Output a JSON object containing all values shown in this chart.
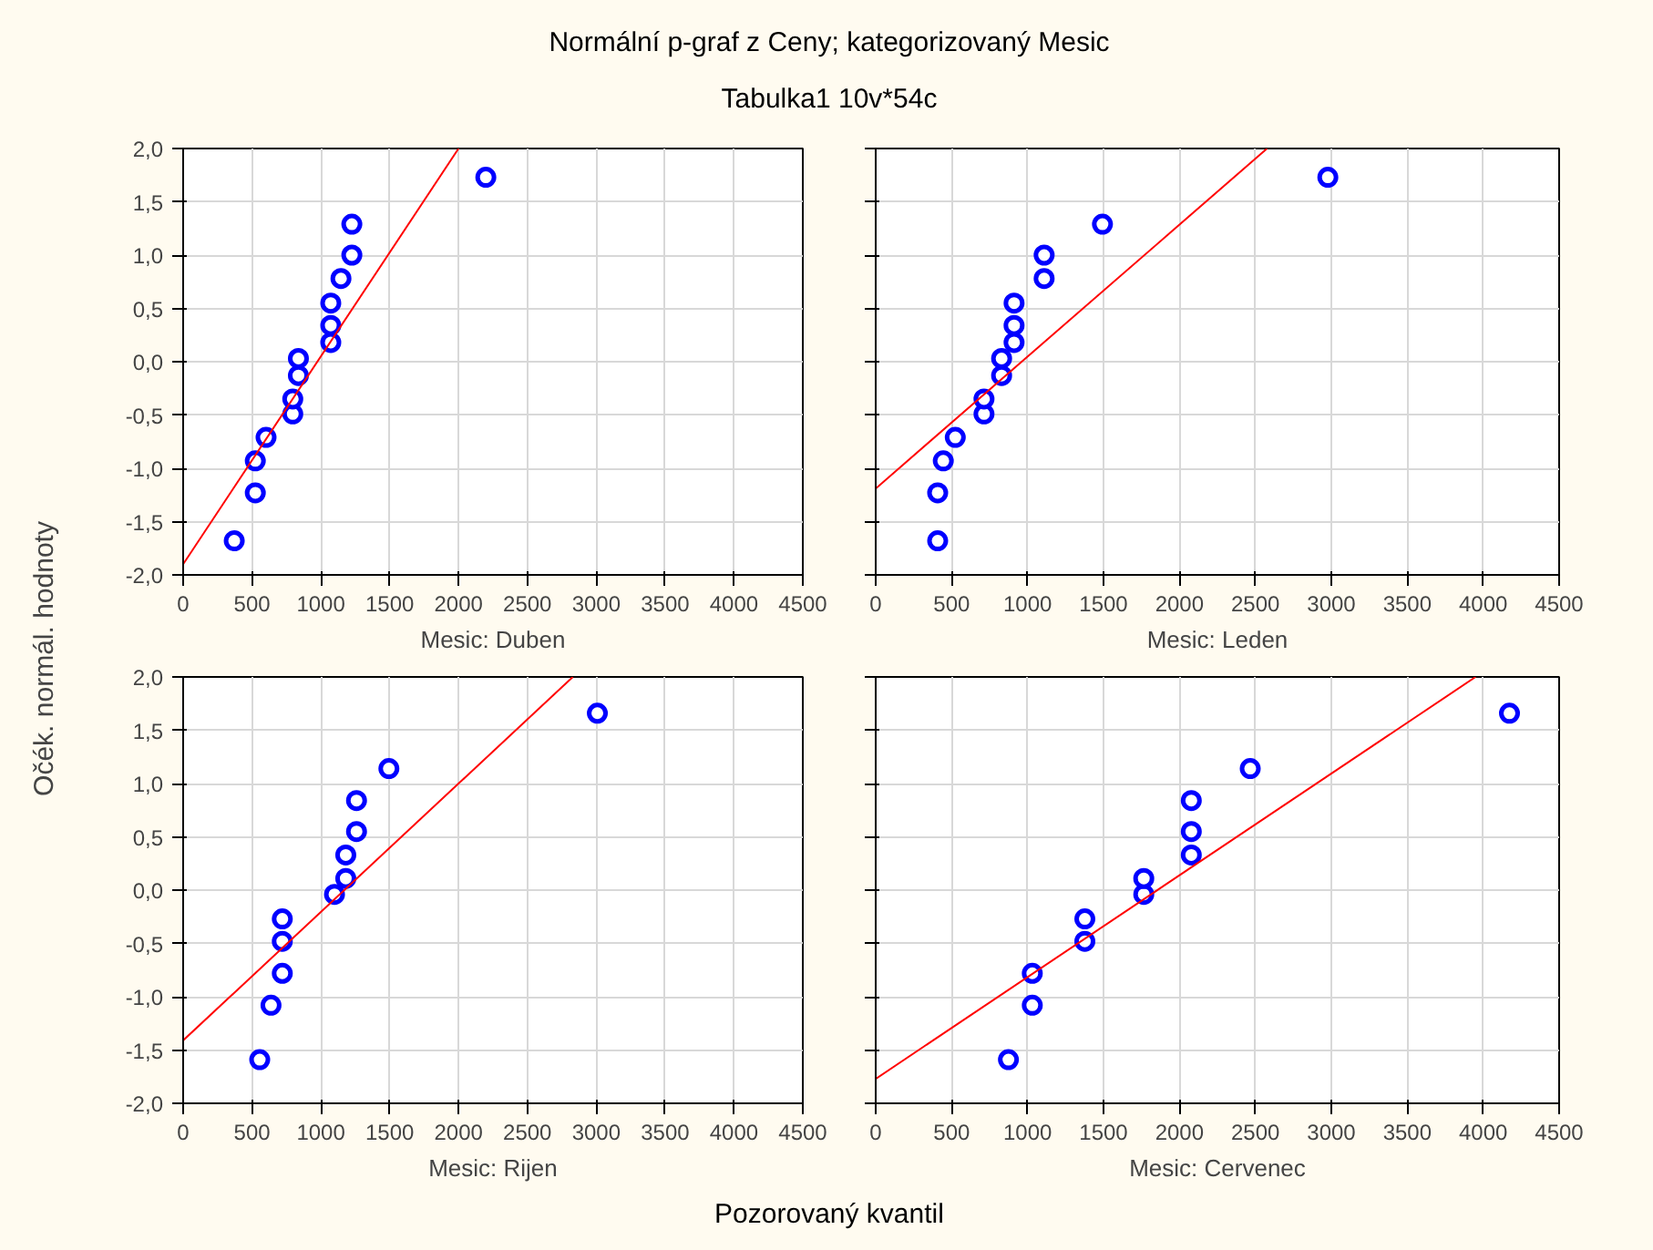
{
  "chart_data": [
    {
      "type": "scatter",
      "title": "Normální p-graf z Ceny; kategorizovaný Mesic",
      "subtitle": "Tabulka1 10v*54c",
      "ylabel": "Očék. normál. hodnoty",
      "annotations": [
        "Pozorovaný kvantil"
      ],
      "xlabel": "Mesic: Duben",
      "series": [
        {
          "x": [
            371,
            524,
            524,
            602,
            796,
            796,
            837,
            837,
            1072,
            1072,
            1072,
            1146,
            1225,
            1225,
            2198
          ],
          "values": [
            -1.68,
            -1.23,
            -0.93,
            -0.71,
            -0.49,
            -0.35,
            -0.13,
            0.03,
            0.18,
            0.34,
            0.55,
            0.78,
            1.0,
            1.29,
            1.73
          ],
          "color": "#0000ff",
          "marker": "circle"
        },
        {
          "type": "line",
          "x": [
            0,
            2000
          ],
          "values": [
            -1.9,
            2.0
          ],
          "color": "#ff0000"
        }
      ],
      "xlim": [
        0,
        4500
      ],
      "ylim": [
        -2,
        2
      ],
      "xticks": [
        0,
        500,
        1000,
        1500,
        2000,
        2500,
        3000,
        3500,
        4000,
        4500
      ],
      "yticks": [
        {
          "value": -2,
          "label": "-2,0"
        },
        {
          "value": -1.5,
          "label": "-1,5"
        },
        {
          "value": -1,
          "label": "-1,0"
        },
        {
          "value": -0.5,
          "label": "-0,5"
        },
        {
          "value": 0,
          "label": "0,0"
        },
        {
          "value": 0.5,
          "label": "0,5"
        },
        {
          "value": 1,
          "label": "1,0"
        },
        {
          "value": 1.5,
          "label": "1,5"
        },
        {
          "value": 2,
          "label": "2,0"
        }
      ],
      "grid": true
    },
    {
      "type": "scatter",
      "xlabel": "Mesic: Leden",
      "series": [
        {
          "x": [
            408,
            408,
            445,
            524,
            713,
            713,
            829,
            829,
            911,
            911,
            911,
            1109,
            1109,
            1493,
            2977
          ],
          "values": [
            -1.68,
            -1.23,
            -0.93,
            -0.71,
            -0.49,
            -0.35,
            -0.13,
            0.03,
            0.18,
            0.34,
            0.55,
            0.78,
            1.0,
            1.29,
            1.73
          ],
          "color": "#0000ff",
          "marker": "circle"
        },
        {
          "type": "line",
          "x": [
            0,
            2577
          ],
          "values": [
            -1.19,
            2.0
          ],
          "color": "#ff0000"
        }
      ],
      "xlim": [
        0,
        4500
      ],
      "ylim": [
        -2,
        2
      ],
      "xticks": [
        0,
        500,
        1000,
        1500,
        2000,
        2500,
        3000,
        3500,
        4000,
        4500
      ],
      "yticks": [
        -2,
        -1.5,
        -1,
        -0.5,
        0,
        0.5,
        1,
        1.5,
        2
      ],
      "grid": true,
      "tick_labels": "x"
    },
    {
      "type": "scatter",
      "xlabel": "Mesic: Rijen",
      "series": [
        {
          "x": [
            556,
            638,
            720,
            720,
            720,
            1099,
            1181,
            1181,
            1259,
            1259,
            1494,
            3008
          ],
          "values": [
            -1.59,
            -1.08,
            -0.78,
            -0.48,
            -0.27,
            -0.04,
            0.11,
            0.33,
            0.55,
            0.84,
            1.14,
            1.66
          ],
          "color": "#0000ff",
          "marker": "circle"
        },
        {
          "type": "line",
          "x": [
            0,
            2830
          ],
          "values": [
            -1.41,
            2.0
          ],
          "color": "#ff0000"
        }
      ],
      "xlim": [
        0,
        4500
      ],
      "ylim": [
        -2,
        2
      ],
      "xticks": [
        0,
        500,
        1000,
        1500,
        2000,
        2500,
        3000,
        3500,
        4000,
        4500
      ],
      "yticks": [
        {
          "value": -2,
          "label": "-2,0"
        },
        {
          "value": -1.5,
          "label": "-1,5"
        },
        {
          "value": -1,
          "label": "-1,0"
        },
        {
          "value": -0.5,
          "label": "-0,5"
        },
        {
          "value": 0,
          "label": "0,0"
        },
        {
          "value": 0.5,
          "label": "0,5"
        },
        {
          "value": 1,
          "label": "1,0"
        },
        {
          "value": 1.5,
          "label": "1,5"
        },
        {
          "value": 2,
          "label": "2,0"
        }
      ],
      "grid": true
    },
    {
      "type": "scatter",
      "xlabel": "Mesic: Cervenec",
      "series": [
        {
          "x": [
            874,
            1031,
            1031,
            1377,
            1377,
            1765,
            1765,
            2078,
            2078,
            2078,
            2466,
            4173
          ],
          "values": [
            -1.59,
            -1.08,
            -0.78,
            -0.48,
            -0.27,
            -0.04,
            0.11,
            0.33,
            0.55,
            0.84,
            1.14,
            1.66
          ],
          "color": "#0000ff",
          "marker": "circle"
        },
        {
          "type": "line",
          "x": [
            0,
            3950
          ],
          "values": [
            -1.77,
            2.0
          ],
          "color": "#ff0000"
        }
      ],
      "xlim": [
        0,
        4500
      ],
      "ylim": [
        -2,
        2
      ],
      "xticks": [
        0,
        500,
        1000,
        1500,
        2000,
        2500,
        3000,
        3500,
        4000,
        4500
      ],
      "yticks": [
        -2,
        -1.5,
        -1,
        -0.5,
        0,
        0.5,
        1,
        1.5,
        2
      ],
      "grid": true,
      "tick_labels": "x"
    }
  ]
}
